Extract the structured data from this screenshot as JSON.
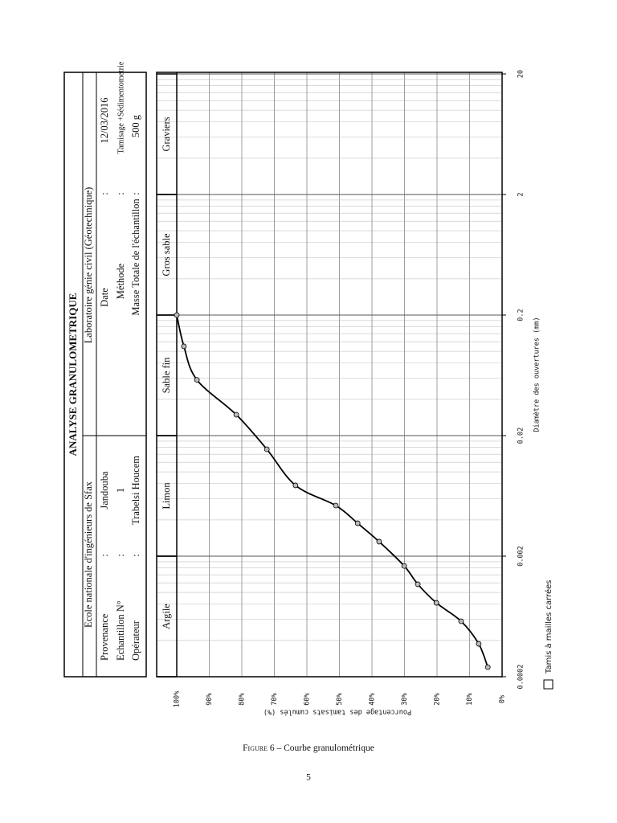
{
  "header": {
    "title": "ANALYSE GRANULOMETRIQUE",
    "institution": "Ecole nationale d'ingénieurs de Sfax",
    "laboratory": "Laboratoire génie civil (Géotechnique)",
    "left_rows": [
      [
        "Provenance",
        ":",
        "Jandouba"
      ],
      [
        "Echantillon N°",
        ":",
        "1"
      ],
      [
        "Opérateur",
        ":",
        "Trabelsi Houcem"
      ]
    ],
    "right_rows": [
      [
        "Date",
        ":",
        "12/03/2016"
      ],
      [
        "Méthode",
        ":",
        "Tamisage +Sédimentometrie"
      ],
      [
        "Masse Totale de l'échantillon",
        ":",
        "500 g"
      ]
    ]
  },
  "chart_data": {
    "type": "line",
    "x_label": "Diamètre des ouvertures (mm)",
    "y_label": "Pourcentage des tamisats cumulés (%)",
    "x": [
      0.00024,
      0.000375,
      0.000577,
      0.00082,
      0.00117,
      0.00166,
      0.00264,
      0.00375,
      0.00526,
      0.00773,
      0.0154,
      0.0298,
      0.058,
      0.11,
      0.2
    ],
    "series": [
      {
        "name": "Tamis à mailles carrées",
        "color": "#000000",
        "values": [
          4.4,
          7.2,
          12.6,
          20.2,
          25.9,
          30.1,
          37.8,
          44.4,
          51.1,
          63.5,
          72.3,
          81.7,
          93.8,
          97.8,
          100
        ]
      }
    ],
    "xscale": "log",
    "xlim": [
      0.0002,
      20
    ],
    "xticks": [
      0.0002,
      0.002,
      0.02,
      0.2,
      2,
      20
    ],
    "ylim": [
      0,
      100
    ],
    "yticks": [
      {
        "value": 0,
        "label": "0%"
      },
      {
        "value": 10,
        "label": "10%"
      },
      {
        "value": 20,
        "label": "20%"
      },
      {
        "value": 30,
        "label": "30%"
      },
      {
        "value": 40,
        "label": "40%"
      },
      {
        "value": 50,
        "label": "50%"
      },
      {
        "value": 60,
        "label": "60%"
      },
      {
        "value": 70,
        "label": "70%"
      },
      {
        "value": 80,
        "label": "80%"
      },
      {
        "value": 90,
        "label": "90%"
      },
      {
        "value": 100,
        "label": "100%"
      }
    ],
    "grid": true,
    "legend": "bottom-left",
    "zones": [
      {
        "label": "Argile",
        "from": 0.0002,
        "to": 0.002
      },
      {
        "label": "Limon",
        "from": 0.002,
        "to": 0.02
      },
      {
        "label": "Sable fin",
        "from": 0.02,
        "to": 0.2
      },
      {
        "label": "Gros sable",
        "from": 0.2,
        "to": 2
      },
      {
        "label": "Graviers",
        "from": 2,
        "to": 20
      }
    ]
  },
  "caption_label": "Figure 6",
  "caption_text": "– Courbe granulométrique",
  "page_number": "5"
}
